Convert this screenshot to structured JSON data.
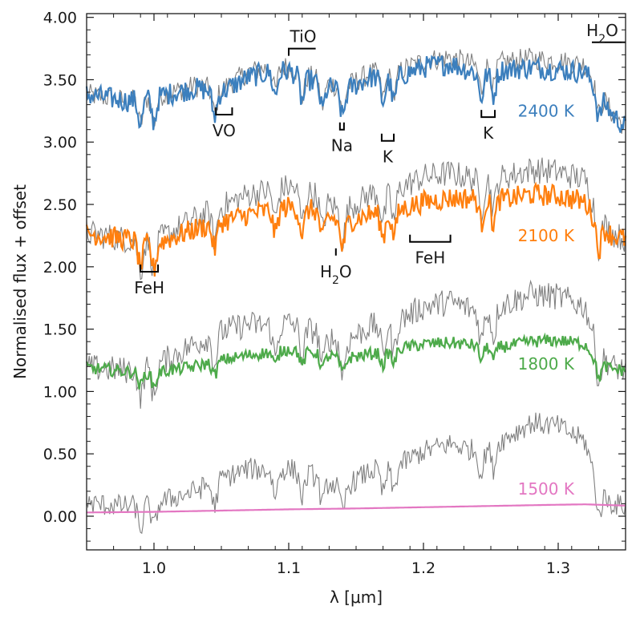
{
  "chart_data": {
    "type": "line",
    "title": "",
    "xlabel": "λ [μm]",
    "ylabel": "Normalised flux + offset",
    "xlim": [
      0.95,
      1.35
    ],
    "ylim": [
      -0.27,
      4.03
    ],
    "xticks": [
      1.0,
      1.1,
      1.2,
      1.3
    ],
    "xtick_labels": [
      "1.0",
      "1.1",
      "1.2",
      "1.3"
    ],
    "yticks": [
      0.0,
      0.5,
      1.0,
      1.5,
      2.0,
      2.5,
      3.0,
      3.5,
      4.0
    ],
    "ytick_labels": [
      "0.00",
      "0.50",
      "1.00",
      "1.50",
      "2.00",
      "2.50",
      "3.00",
      "3.50",
      "4.00"
    ],
    "grid": false,
    "series": [
      {
        "name": "2400 K",
        "color": "#3c7fbd",
        "reference_color": "#808080",
        "model": {
          "x": [
            0.95,
            0.98,
            1.0,
            1.03,
            1.05,
            1.07,
            1.09,
            1.1,
            1.12,
            1.14,
            1.16,
            1.18,
            1.2,
            1.22,
            1.24,
            1.26,
            1.28,
            1.3,
            1.32,
            1.33,
            1.34,
            1.35
          ],
          "y": [
            3.38,
            3.33,
            3.36,
            3.43,
            3.4,
            3.52,
            3.57,
            3.57,
            3.48,
            3.4,
            3.52,
            3.52,
            3.6,
            3.63,
            3.55,
            3.58,
            3.6,
            3.58,
            3.56,
            3.4,
            3.22,
            3.12
          ]
        },
        "reference": {
          "x": [
            0.95,
            0.98,
            1.0,
            1.03,
            1.05,
            1.07,
            1.09,
            1.1,
            1.12,
            1.14,
            1.16,
            1.18,
            1.2,
            1.22,
            1.24,
            1.26,
            1.28,
            1.3,
            1.32,
            1.33,
            1.34,
            1.35
          ],
          "y": [
            3.38,
            3.33,
            3.36,
            3.45,
            3.42,
            3.56,
            3.61,
            3.6,
            3.51,
            3.43,
            3.55,
            3.56,
            3.65,
            3.68,
            3.61,
            3.64,
            3.67,
            3.65,
            3.62,
            3.42,
            3.23,
            3.12
          ]
        }
      },
      {
        "name": "2100 K",
        "color": "#ff7f0e",
        "reference_color": "#808080",
        "model": {
          "x": [
            0.95,
            0.98,
            1.0,
            1.03,
            1.05,
            1.07,
            1.09,
            1.1,
            1.12,
            1.14,
            1.16,
            1.18,
            1.2,
            1.22,
            1.24,
            1.26,
            1.28,
            1.3,
            1.32,
            1.33,
            1.34,
            1.35
          ],
          "y": [
            2.27,
            2.22,
            2.18,
            2.3,
            2.36,
            2.42,
            2.46,
            2.48,
            2.45,
            2.35,
            2.42,
            2.45,
            2.52,
            2.55,
            2.55,
            2.54,
            2.58,
            2.57,
            2.52,
            2.34,
            2.25,
            2.22
          ]
        },
        "reference": {
          "x": [
            0.95,
            0.98,
            1.0,
            1.03,
            1.05,
            1.07,
            1.09,
            1.1,
            1.12,
            1.14,
            1.16,
            1.18,
            1.2,
            1.22,
            1.24,
            1.26,
            1.28,
            1.3,
            1.32,
            1.33,
            1.34,
            1.35
          ],
          "y": [
            2.27,
            2.22,
            2.2,
            2.38,
            2.48,
            2.58,
            2.62,
            2.64,
            2.58,
            2.44,
            2.58,
            2.62,
            2.72,
            2.75,
            2.7,
            2.72,
            2.78,
            2.76,
            2.7,
            2.4,
            2.27,
            2.22
          ]
        }
      },
      {
        "name": "1800 K",
        "color": "#4daa4a",
        "reference_color": "#808080",
        "model": {
          "x": [
            0.95,
            0.98,
            1.0,
            1.03,
            1.05,
            1.07,
            1.09,
            1.1,
            1.12,
            1.14,
            1.16,
            1.18,
            1.2,
            1.22,
            1.24,
            1.26,
            1.28,
            1.3,
            1.32,
            1.33,
            1.34,
            1.35
          ],
          "y": [
            1.19,
            1.16,
            1.15,
            1.2,
            1.25,
            1.29,
            1.32,
            1.34,
            1.31,
            1.26,
            1.3,
            1.34,
            1.38,
            1.39,
            1.37,
            1.36,
            1.4,
            1.41,
            1.38,
            1.22,
            1.18,
            1.17
          ]
        },
        "reference": {
          "x": [
            0.95,
            0.98,
            1.0,
            1.03,
            1.05,
            1.07,
            1.09,
            1.1,
            1.12,
            1.14,
            1.16,
            1.18,
            1.2,
            1.22,
            1.24,
            1.26,
            1.28,
            1.3,
            1.32,
            1.33,
            1.34,
            1.35
          ],
          "y": [
            1.19,
            1.17,
            1.2,
            1.38,
            1.48,
            1.54,
            1.52,
            1.55,
            1.48,
            1.38,
            1.52,
            1.56,
            1.68,
            1.72,
            1.64,
            1.7,
            1.78,
            1.76,
            1.68,
            1.32,
            1.2,
            1.17
          ]
        }
      },
      {
        "name": "1500 K",
        "color": "#e377c2",
        "reference_color": "#808080",
        "model": {
          "x": [
            0.95,
            1.0,
            1.05,
            1.1,
            1.15,
            1.2,
            1.25,
            1.3,
            1.32,
            1.35
          ],
          "y": [
            0.03,
            0.035,
            0.045,
            0.055,
            0.062,
            0.072,
            0.082,
            0.092,
            0.095,
            0.085
          ]
        },
        "reference": {
          "x": [
            0.95,
            0.98,
            1.0,
            1.03,
            1.05,
            1.07,
            1.09,
            1.1,
            1.12,
            1.14,
            1.16,
            1.18,
            1.2,
            1.22,
            1.24,
            1.26,
            1.28,
            1.3,
            1.32,
            1.33,
            1.34,
            1.35
          ],
          "y": [
            0.1,
            0.08,
            0.1,
            0.2,
            0.3,
            0.38,
            0.36,
            0.38,
            0.32,
            0.22,
            0.36,
            0.4,
            0.52,
            0.58,
            0.52,
            0.62,
            0.75,
            0.72,
            0.6,
            0.2,
            0.1,
            0.08
          ]
        }
      }
    ],
    "features": [
      {
        "label": "TiO",
        "x1": 1.1,
        "x2": 1.12,
        "y": 3.75,
        "dir": "up",
        "below": false
      },
      {
        "label": "H2O",
        "x1": 1.325,
        "x2": 1.35,
        "y": 3.8,
        "dir": "none",
        "below": false
      },
      {
        "label": "VO",
        "x1": 1.046,
        "x2": 1.058,
        "y": 3.22,
        "dir": "up",
        "below": true
      },
      {
        "label": "Na",
        "x1": 1.138,
        "x2": 1.141,
        "y": 3.1,
        "dir": "up",
        "below": true
      },
      {
        "label": "K",
        "x1": 1.169,
        "x2": 1.178,
        "y": 3.01,
        "dir": "up",
        "below": true
      },
      {
        "label": "K",
        "x1": 1.243,
        "x2": 1.253,
        "y": 3.2,
        "dir": "up",
        "below": true
      },
      {
        "label": "FeH",
        "x1": 0.99,
        "x2": 1.003,
        "y": 1.96,
        "dir": "up",
        "below": true
      },
      {
        "label": "H2O",
        "x1": 1.135,
        "x2": 1.135,
        "y": 2.09,
        "dir": "up",
        "below": true
      },
      {
        "label": "FeH",
        "x1": 1.19,
        "x2": 1.22,
        "y": 2.2,
        "dir": "up",
        "below": true
      }
    ]
  }
}
